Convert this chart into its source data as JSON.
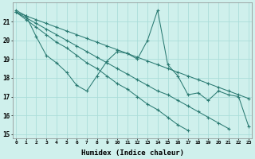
{
  "xlabel": "Humidex (Indice chaleur)",
  "bg_color": "#cff0ec",
  "grid_color": "#aaddda",
  "line_color": "#2a7a72",
  "xlim": [
    0,
    23
  ],
  "ylim": [
    14.8,
    22.0
  ],
  "yticks": [
    15,
    16,
    17,
    18,
    19,
    20,
    21
  ],
  "xticks": [
    0,
    1,
    2,
    3,
    4,
    5,
    6,
    7,
    8,
    9,
    10,
    11,
    12,
    13,
    14,
    15,
    16,
    17,
    18,
    19,
    20,
    21,
    22,
    23
  ],
  "line1_x": [
    0,
    1,
    2,
    3,
    4,
    5,
    6,
    7,
    8,
    9,
    10,
    11,
    12,
    13,
    14,
    15,
    16,
    17,
    18,
    19,
    20,
    21,
    22,
    23
  ],
  "line1_y": [
    21.6,
    21.3,
    20.2,
    19.2,
    18.8,
    18.3,
    17.6,
    17.3,
    18.1,
    18.9,
    19.4,
    19.3,
    19.0,
    20.0,
    21.6,
    18.7,
    18.1,
    17.1,
    17.2,
    16.8,
    17.3,
    17.1,
    17.0,
    15.4
  ],
  "line2_x": [
    0,
    1,
    2,
    3,
    4,
    5,
    6,
    7,
    8,
    9,
    10,
    11,
    12,
    13,
    14,
    15,
    16,
    17,
    18,
    19,
    20,
    21,
    22,
    23
  ],
  "line2_y": [
    21.5,
    21.1,
    20.7,
    20.3,
    19.9,
    19.6,
    19.2,
    18.8,
    18.5,
    18.1,
    17.7,
    17.4,
    17.0,
    16.6,
    16.3,
    15.9,
    15.5,
    15.2,
    null,
    null,
    null,
    null,
    null,
    null
  ],
  "line3_x": [
    0,
    1,
    2,
    3,
    4,
    5,
    6,
    7,
    8,
    9,
    10,
    11,
    12,
    13,
    14,
    15,
    16,
    17,
    18,
    19,
    20,
    21,
    22,
    23
  ],
  "line3_y": [
    21.5,
    21.2,
    20.9,
    20.6,
    20.3,
    20.0,
    19.7,
    19.4,
    19.1,
    18.8,
    18.5,
    18.2,
    17.9,
    17.6,
    17.3,
    17.1,
    16.8,
    16.5,
    16.2,
    15.9,
    15.6,
    15.3,
    null,
    null
  ],
  "line4_x": [
    0,
    1,
    2,
    3,
    4,
    5,
    6,
    7,
    8,
    9,
    10,
    11,
    12,
    13,
    14,
    15,
    16,
    17,
    18,
    19,
    20,
    21,
    22,
    23
  ],
  "line4_y": [
    21.5,
    21.3,
    21.1,
    20.9,
    20.7,
    20.5,
    20.3,
    20.1,
    19.9,
    19.7,
    19.5,
    19.3,
    19.1,
    18.9,
    18.7,
    18.5,
    18.3,
    18.1,
    17.9,
    17.7,
    17.5,
    17.3,
    17.1,
    16.9
  ]
}
